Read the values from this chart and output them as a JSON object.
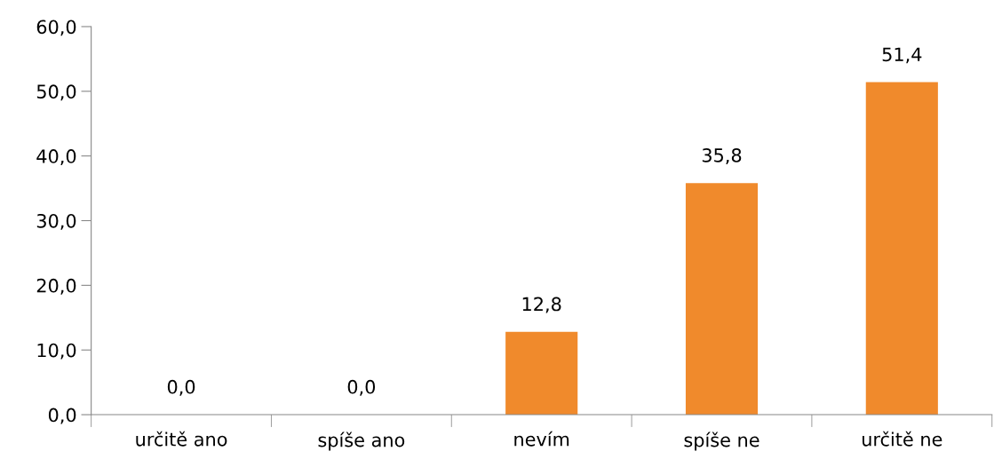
{
  "chart_data": {
    "type": "bar",
    "categories": [
      "určitě ano",
      "spíše ano",
      "nevím",
      "spíše ne",
      "určitě ne"
    ],
    "values": [
      0.0,
      0.0,
      12.8,
      35.8,
      51.4
    ],
    "value_labels": [
      "0,0",
      "0,0",
      "12,8",
      "35,8",
      "51,4"
    ],
    "color": "#f08a2c",
    "ylim": [
      0,
      60
    ],
    "yticks": [
      {
        "value": 0,
        "label": "0,0"
      },
      {
        "value": 10,
        "label": "10,0"
      },
      {
        "value": 20,
        "label": "20,0"
      },
      {
        "value": 30,
        "label": "30,0"
      },
      {
        "value": 40,
        "label": "40,0"
      },
      {
        "value": 50,
        "label": "50,0"
      },
      {
        "value": 60,
        "label": "60,0"
      }
    ],
    "grid": false,
    "legend": false
  }
}
